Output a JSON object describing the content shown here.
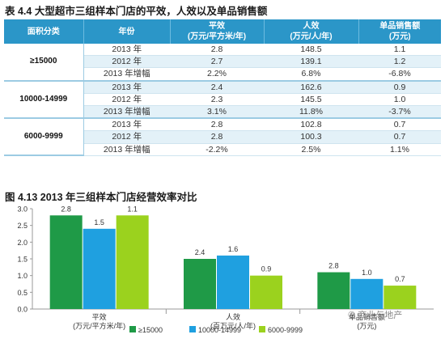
{
  "table": {
    "title": "表 4.4 大型超市三组样本门店的平效，人效以及单品销售额",
    "headers": [
      {
        "line1": "面积分类",
        "line2": ""
      },
      {
        "line1": "年份",
        "line2": ""
      },
      {
        "line1": "平效",
        "line2": "(万元/平方米/年)"
      },
      {
        "line1": "人效",
        "line2": "(万元/人/年)"
      },
      {
        "line1": "单品销售额",
        "line2": "(万元)"
      }
    ],
    "groups": [
      {
        "name": "≥15000",
        "rows": [
          {
            "year": "2013 年",
            "pingxiao": "2.8",
            "renxiao": "148.5",
            "danpin": "1.1"
          },
          {
            "year": "2012 年",
            "pingxiao": "2.7",
            "renxiao": "139.1",
            "danpin": "1.2"
          },
          {
            "year": "2013 年增幅",
            "pingxiao": "2.2%",
            "renxiao": "6.8%",
            "danpin": "-6.8%"
          }
        ]
      },
      {
        "name": "10000-14999",
        "rows": [
          {
            "year": "2013 年",
            "pingxiao": "2.4",
            "renxiao": "162.6",
            "danpin": "0.9"
          },
          {
            "year": "2012 年",
            "pingxiao": "2.3",
            "renxiao": "145.5",
            "danpin": "1.0"
          },
          {
            "year": "2013 年增幅",
            "pingxiao": "3.1%",
            "renxiao": "11.8%",
            "danpin": "-3.7%"
          }
        ]
      },
      {
        "name": "6000-9999",
        "rows": [
          {
            "year": "2013 年",
            "pingxiao": "2.8",
            "renxiao": "102.8",
            "danpin": "0.7"
          },
          {
            "year": "2012 年",
            "pingxiao": "2.8",
            "renxiao": "100.3",
            "danpin": "0.7"
          },
          {
            "year": "2013 年增幅",
            "pingxiao": "-2.2%",
            "renxiao": "2.5%",
            "danpin": "1.1%"
          }
        ]
      }
    ]
  },
  "chart_data": {
    "type": "bar",
    "title": "图 4.13 2013 年三组样本门店经营效率对比",
    "categories": [
      [
        "平效",
        "(万元/平方米/年)"
      ],
      [
        "人效",
        "(百万元/人/年)"
      ],
      [
        "单品销售额",
        "(万元)"
      ]
    ],
    "series": [
      {
        "name": "≥15000",
        "color": "#1f9a47",
        "values": [
          2.8,
          1.5,
          1.1
        ]
      },
      {
        "name": "10000-14999",
        "color": "#1fa0e0",
        "values": [
          2.4,
          1.6,
          0.9
        ]
      },
      {
        "name": "6000-9999",
        "color": "#9bd21e",
        "values": [
          2.8,
          1.0,
          0.7
        ]
      }
    ],
    "data_labels": [
      [
        "2.8",
        "1.5",
        "1.1"
      ],
      [
        "2.4",
        "1.6",
        "0.9"
      ],
      [
        "2.8",
        "1.0",
        "0.7"
      ]
    ],
    "yticks": [
      "0.0",
      "0.5",
      "1.0",
      "1.5",
      "2.0",
      "2.5",
      "3.0"
    ],
    "ylim": [
      0,
      3.0
    ],
    "grid": false,
    "legend_position": "bottom"
  },
  "watermark": "商业与地产"
}
